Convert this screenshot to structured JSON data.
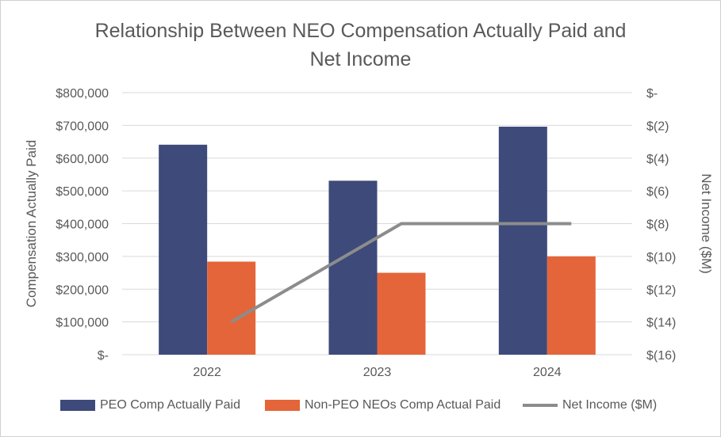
{
  "title_line1": "Relationship Between NEO Compensation Actually Paid and",
  "title_line2": "Net Income",
  "colors": {
    "peo": "#3d4a7a",
    "non_peo": "#e46539",
    "net_income": "#8c8c8c",
    "grid": "#d9d9d9",
    "text": "#595959"
  },
  "chart_data": {
    "type": "bar",
    "categories": [
      "2022",
      "2023",
      "2024"
    ],
    "series": [
      {
        "name": "PEO Comp Actually Paid",
        "kind": "bar",
        "axis": "left",
        "values": [
          641000,
          531000,
          696000
        ]
      },
      {
        "name": "Non-PEO NEOs Comp Actual Paid",
        "kind": "bar",
        "axis": "left",
        "values": [
          284000,
          250000,
          300000
        ]
      },
      {
        "name": "Net Income ($M)",
        "kind": "line",
        "axis": "right",
        "values": [
          -14,
          -8,
          -8
        ]
      }
    ],
    "ylabel": "Compensation Actually Paid",
    "y2label": "Net Income ($M)",
    "ylim": [
      0,
      800000
    ],
    "y2lim": [
      -16,
      0
    ],
    "y_ticks": [
      "$-",
      "$100,000",
      "$200,000",
      "$300,000",
      "$400,000",
      "$500,000",
      "$600,000",
      "$700,000",
      "$800,000"
    ],
    "y2_ticks": [
      "$(16)",
      "$(14)",
      "$(12)",
      "$(10)",
      "$(8)",
      "$(6)",
      "$(4)",
      "$(2)",
      "$-"
    ],
    "grid": true,
    "legend": "bottom"
  }
}
